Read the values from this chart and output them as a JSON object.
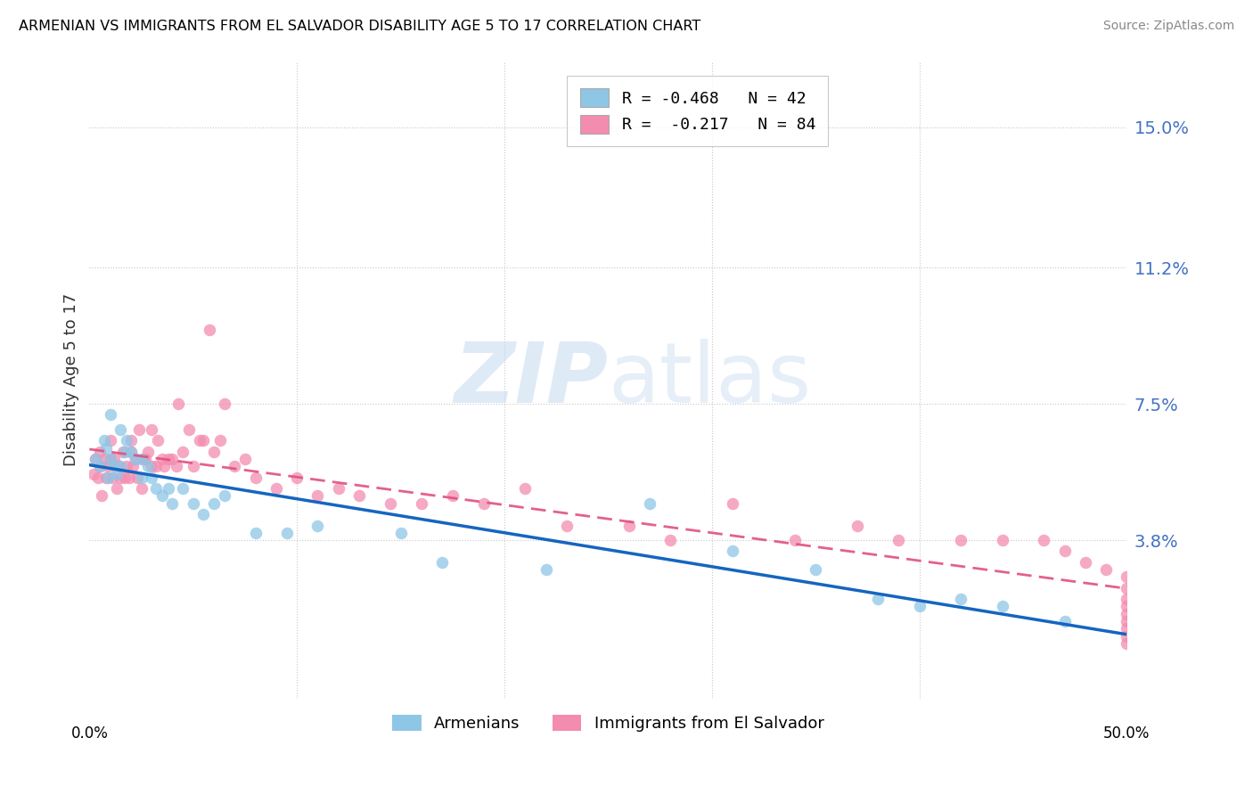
{
  "title": "ARMENIAN VS IMMIGRANTS FROM EL SALVADOR DISABILITY AGE 5 TO 17 CORRELATION CHART",
  "source": "Source: ZipAtlas.com",
  "ylabel": "Disability Age 5 to 17",
  "ytick_labels": [
    "3.8%",
    "7.5%",
    "11.2%",
    "15.0%"
  ],
  "ytick_values": [
    0.038,
    0.075,
    0.112,
    0.15
  ],
  "xlim": [
    0.0,
    0.5
  ],
  "ylim": [
    -0.005,
    0.168
  ],
  "legend_armenian": "R = -0.468   N = 42",
  "legend_salvador": "R =  -0.217   N = 84",
  "legend_label_armenian": "Armenians",
  "legend_label_salvador": "Immigrants from El Salvador",
  "color_armenian": "#8ec6e6",
  "color_salvador": "#f48cb0",
  "color_line_armenian": "#1565c0",
  "color_line_salvador": "#e05080",
  "watermark_zip": "ZIP",
  "watermark_atlas": "atlas",
  "armenian_scatter_x": [
    0.003,
    0.005,
    0.007,
    0.008,
    0.009,
    0.01,
    0.01,
    0.012,
    0.013,
    0.015,
    0.015,
    0.017,
    0.018,
    0.02,
    0.022,
    0.025,
    0.025,
    0.028,
    0.03,
    0.032,
    0.035,
    0.038,
    0.04,
    0.045,
    0.05,
    0.055,
    0.06,
    0.065,
    0.08,
    0.095,
    0.11,
    0.15,
    0.17,
    0.22,
    0.27,
    0.31,
    0.35,
    0.38,
    0.4,
    0.42,
    0.44,
    0.47
  ],
  "armenian_scatter_y": [
    0.06,
    0.058,
    0.065,
    0.063,
    0.055,
    0.06,
    0.072,
    0.058,
    0.056,
    0.068,
    0.058,
    0.062,
    0.065,
    0.062,
    0.06,
    0.055,
    0.06,
    0.058,
    0.055,
    0.052,
    0.05,
    0.052,
    0.048,
    0.052,
    0.048,
    0.045,
    0.048,
    0.05,
    0.04,
    0.04,
    0.042,
    0.04,
    0.032,
    0.03,
    0.048,
    0.035,
    0.03,
    0.022,
    0.02,
    0.022,
    0.02,
    0.016
  ],
  "salvador_scatter_x": [
    0.002,
    0.003,
    0.004,
    0.005,
    0.005,
    0.006,
    0.007,
    0.008,
    0.009,
    0.01,
    0.01,
    0.011,
    0.012,
    0.013,
    0.014,
    0.015,
    0.016,
    0.017,
    0.018,
    0.019,
    0.02,
    0.02,
    0.021,
    0.022,
    0.023,
    0.024,
    0.025,
    0.026,
    0.027,
    0.028,
    0.03,
    0.03,
    0.032,
    0.033,
    0.035,
    0.036,
    0.038,
    0.04,
    0.042,
    0.043,
    0.045,
    0.048,
    0.05,
    0.053,
    0.055,
    0.058,
    0.06,
    0.063,
    0.065,
    0.07,
    0.075,
    0.08,
    0.09,
    0.1,
    0.11,
    0.12,
    0.13,
    0.145,
    0.16,
    0.175,
    0.19,
    0.21,
    0.23,
    0.26,
    0.28,
    0.31,
    0.34,
    0.37,
    0.39,
    0.42,
    0.44,
    0.46,
    0.47,
    0.48,
    0.49,
    0.5,
    0.5,
    0.5,
    0.5,
    0.5,
    0.5,
    0.5,
    0.5,
    0.5
  ],
  "salvador_scatter_y": [
    0.056,
    0.06,
    0.055,
    0.058,
    0.062,
    0.05,
    0.06,
    0.055,
    0.058,
    0.06,
    0.065,
    0.055,
    0.06,
    0.052,
    0.058,
    0.055,
    0.062,
    0.055,
    0.058,
    0.055,
    0.062,
    0.065,
    0.058,
    0.06,
    0.055,
    0.068,
    0.052,
    0.06,
    0.06,
    0.062,
    0.058,
    0.068,
    0.058,
    0.065,
    0.06,
    0.058,
    0.06,
    0.06,
    0.058,
    0.075,
    0.062,
    0.068,
    0.058,
    0.065,
    0.065,
    0.095,
    0.062,
    0.065,
    0.075,
    0.058,
    0.06,
    0.055,
    0.052,
    0.055,
    0.05,
    0.052,
    0.05,
    0.048,
    0.048,
    0.05,
    0.048,
    0.052,
    0.042,
    0.042,
    0.038,
    0.048,
    0.038,
    0.042,
    0.038,
    0.038,
    0.038,
    0.038,
    0.035,
    0.032,
    0.03,
    0.028,
    0.025,
    0.022,
    0.02,
    0.018,
    0.016,
    0.014,
    0.012,
    0.01
  ]
}
